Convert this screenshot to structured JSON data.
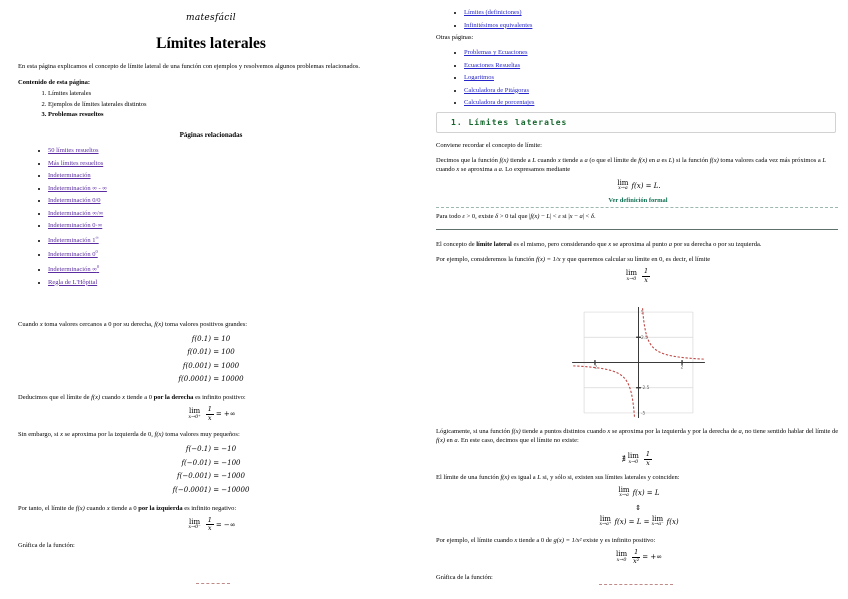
{
  "page1": {
    "logo": "matesfácil",
    "title": "Límites laterales",
    "intro": "En esta página explicamos el concepto de límite lateral de una función con ejemplos y resolvemos algunos problemas relacionados.",
    "contents_heading": "Contenido de esta página:",
    "contents": [
      {
        "label": "Límites laterales"
      },
      {
        "label": "Ejemplos de límites laterales distintos"
      },
      {
        "label": "Problemas resueltos",
        "bold": true
      }
    ],
    "related_heading": "Páginas relacionadas",
    "related_links": [
      {
        "text": "50 límites resueltos"
      },
      {
        "text": "Más límites resueltos"
      },
      {
        "text": "Indeterminación"
      },
      {
        "text": "Indeterminación ∞ - ∞"
      },
      {
        "text": "Indeterminación 0/0"
      },
      {
        "text": "Indeterminación ∞/∞"
      },
      {
        "text": "Indeterminación 0·∞"
      },
      {
        "text": "Indeterminación 1",
        "sup": "∞"
      },
      {
        "text": "Indeterminación 0",
        "sup": "0"
      },
      {
        "text": "Indeterminación ∞",
        "sup": "0"
      },
      {
        "text": "Regla de L'Hôpital"
      }
    ],
    "para_cuando": [
      {
        "t": "Cuando "
      },
      {
        "t": "x",
        "s": "i"
      },
      {
        "t": " toma valores cercanos a 0 por su derecha, "
      },
      {
        "t": "f(x)",
        "s": "i"
      },
      {
        "t": " toma valores positivos grandes:"
      }
    ],
    "values_right": [
      "f(0.1) = 10",
      "f(0.01) = 100",
      "f(0.001) = 1000",
      "f(0.0001) = 10000"
    ],
    "para_deduce": [
      {
        "t": "Deducimos que el límite de "
      },
      {
        "t": "f(x)",
        "s": "i"
      },
      {
        "t": " cuando "
      },
      {
        "t": "x",
        "s": "i"
      },
      {
        "t": " tiende a 0 "
      },
      {
        "t": "por la derecha",
        "s": "b"
      },
      {
        "t": " es infinito positivo:"
      }
    ],
    "lim_right": [
      {
        "lim": "x→0⁺"
      },
      {
        "frac": [
          "1",
          "x"
        ]
      },
      {
        "t": " = +∞"
      }
    ],
    "para_sin": [
      {
        "t": "Sin embargo, si "
      },
      {
        "t": "x",
        "s": "i"
      },
      {
        "t": " se aproxima por la izquierda de 0, "
      },
      {
        "t": "f(x)",
        "s": "i"
      },
      {
        "t": " toma valores muy pequeños:"
      }
    ],
    "values_left": [
      "f(−0.1) = −10",
      "f(−0.01) = −100",
      "f(−0.001) = −1000",
      "f(−0.0001) = −10000"
    ],
    "para_portanto": [
      {
        "t": "Por tanto, el límite de "
      },
      {
        "t": "f(x)",
        "s": "i"
      },
      {
        "t": " cuando "
      },
      {
        "t": "x",
        "s": "i"
      },
      {
        "t": " tiende a 0 "
      },
      {
        "t": "por la izquierda",
        "s": "b"
      },
      {
        "t": " es infinito negativo:"
      }
    ],
    "lim_left": [
      {
        "lim": "x→0⁻"
      },
      {
        "frac": [
          "1",
          "x"
        ]
      },
      {
        "t": " = −∞"
      }
    ],
    "grafica_label": "Gráfica de la función:"
  },
  "page2": {
    "top_links": [
      {
        "text": "Límites (definiciones)"
      },
      {
        "text": "Infinitésimos equivalentes"
      }
    ],
    "otras_heading": "Otras páginas:",
    "other_links": [
      {
        "text": "Problemas y Ecuaciones"
      },
      {
        "text": "Ecuaciones Resueltas"
      },
      {
        "text": "Logaritmos"
      },
      {
        "text": "Calculadora de Pitágoras"
      },
      {
        "text": "Calculadora de porcentajes"
      }
    ],
    "section_heading": "1. Límites laterales",
    "para_conviene": "Conviene recordar el concepto de límite:",
    "para_decimos": [
      {
        "t": "Decimos que la función "
      },
      {
        "t": "f(x)",
        "s": "i"
      },
      {
        "t": " tiende a "
      },
      {
        "t": "L",
        "s": "i"
      },
      {
        "t": " cuando "
      },
      {
        "t": "x",
        "s": "i"
      },
      {
        "t": " tiende a "
      },
      {
        "t": "a",
        "s": "i"
      },
      {
        "t": " (o que el límite de "
      },
      {
        "t": "f(x)",
        "s": "i"
      },
      {
        "t": " en "
      },
      {
        "t": "a",
        "s": "i"
      },
      {
        "t": " es "
      },
      {
        "t": "L",
        "s": "i"
      },
      {
        "t": ") si la función "
      },
      {
        "t": "f(x)",
        "s": "i"
      },
      {
        "t": " toma valores cada vez más próximos a "
      },
      {
        "t": "L",
        "s": "i"
      },
      {
        "t": " cuando "
      },
      {
        "t": "x",
        "s": "i"
      },
      {
        "t": " se aproxima a "
      },
      {
        "t": "a",
        "s": "i"
      },
      {
        "t": ". Lo expresamos mediante"
      }
    ],
    "lim_def": [
      {
        "lim": "x→a"
      },
      {
        "it": " f(x) = L."
      }
    ],
    "ver_def": "Ver definición formal",
    "eps_line": [
      {
        "t": "Para todo "
      },
      {
        "t": "ε",
        "s": "i"
      },
      {
        "t": " > 0, existe "
      },
      {
        "t": "δ",
        "s": "i"
      },
      {
        "t": " > 0 tal que |"
      },
      {
        "t": "f(x)",
        "s": "i"
      },
      {
        "t": " − "
      },
      {
        "t": "L",
        "s": "i"
      },
      {
        "t": "| < "
      },
      {
        "t": "ε",
        "s": "i"
      },
      {
        "t": " si |"
      },
      {
        "t": "x",
        "s": "i"
      },
      {
        "t": " − "
      },
      {
        "t": "a",
        "s": "i"
      },
      {
        "t": "| < "
      },
      {
        "t": "δ",
        "s": "i"
      },
      {
        "t": "."
      }
    ],
    "para_concepto": [
      {
        "t": "El concepto de "
      },
      {
        "t": "límite lateral",
        "s": "b"
      },
      {
        "t": " es el mismo, pero considerando que "
      },
      {
        "t": "x",
        "s": "i"
      },
      {
        "t": " se aproxima al punto "
      },
      {
        "t": "a",
        "s": "i"
      },
      {
        "t": " por su derecha o por su izquierda."
      }
    ],
    "para_ejemplo": [
      {
        "t": "Por ejemplo, consideremos la función "
      },
      {
        "t": "f(x) = 1/x",
        "s": "i"
      },
      {
        "t": " y que queremos calcular su límite en 0, es decir, el límite"
      }
    ],
    "lim_1x": [
      {
        "lim": "x→0"
      },
      {
        "frac": [
          "1",
          "x"
        ]
      }
    ],
    "para_logicamente": [
      {
        "t": "Lógicamente, si una función "
      },
      {
        "t": "f(x)",
        "s": "i"
      },
      {
        "t": " tiende a puntos distintos cuando "
      },
      {
        "t": "x",
        "s": "i"
      },
      {
        "t": " se aproxima por la izquierda y por la derecha de "
      },
      {
        "t": "a",
        "s": "i"
      },
      {
        "t": ", no tiene sentido hablar del límite de "
      },
      {
        "t": "f(x)",
        "s": "i"
      },
      {
        "t": " en "
      },
      {
        "t": "a",
        "s": "i"
      },
      {
        "t": ". En este caso, decimos que el límite no existe:"
      }
    ],
    "lim_noexist": [
      {
        "t": "∄ "
      },
      {
        "lim": "x→0"
      },
      {
        "frac": [
          "1",
          "x"
        ]
      }
    ],
    "para_sii": [
      {
        "t": "El límite de una función "
      },
      {
        "t": "f(x)",
        "s": "i"
      },
      {
        "t": " es igual a "
      },
      {
        "t": "L",
        "s": "i"
      },
      {
        "t": " si, y sólo si, existen sus límites laterales y coinciden:"
      }
    ],
    "lim_eq1": [
      {
        "lim": "x→a"
      },
      {
        "it": " f(x) = L"
      }
    ],
    "updown": "⇕",
    "lim_eq2": [
      {
        "lim": "x→a⁺"
      },
      {
        "it": " f(x) = L = "
      },
      {
        "lim": "x→a⁻"
      },
      {
        "it": " f(x)"
      }
    ],
    "para_ejemplo2": [
      {
        "t": "Por ejemplo, el límite cuando "
      },
      {
        "t": "x",
        "s": "i"
      },
      {
        "t": " tiende a 0 de "
      },
      {
        "t": "g(x) = 1/x²",
        "s": "i"
      },
      {
        "t": " existe y es infinito positivo:"
      }
    ],
    "lim_1x2": [
      {
        "lim": "x→0"
      },
      {
        "frac": [
          "1",
          "x²"
        ]
      },
      {
        "t": " = +∞"
      }
    ],
    "grafica_label": "Gráfica de la función:"
  },
  "figure": {
    "type": "line",
    "function": "y = 1/x",
    "x_range": [
      -3,
      3
    ],
    "y_range": [
      -5,
      5
    ],
    "x_ticks": [
      -2,
      2
    ],
    "y_ticks": [
      -5,
      -2.5,
      2.5,
      5
    ],
    "grid": true,
    "curve_style": "dashed",
    "colors": {
      "curve": "#bf4a47",
      "axis": "#3a3a3a",
      "grid": "#d8d8d8",
      "label": "#555555"
    }
  },
  "colors": {
    "visited_link": "#5a2ca0",
    "link": "#2626c9",
    "section_heading_text": "#15672d",
    "ver_def_link": "#0e6e52"
  }
}
